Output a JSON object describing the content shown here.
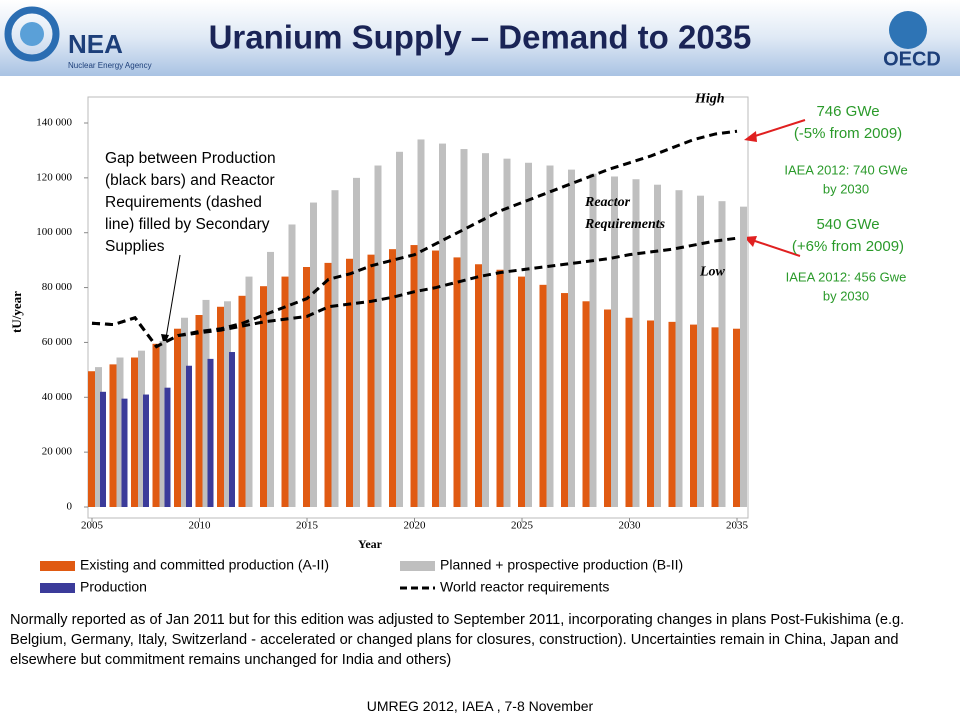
{
  "header": {
    "title": "Uranium Supply – Demand to 2035",
    "left_logo": "NEA",
    "left_logo_sub": "Nuclear Energy Agency",
    "right_logo": "OECD"
  },
  "chart_data": {
    "type": "bar",
    "x": [
      2005,
      2006,
      2007,
      2008,
      2009,
      2010,
      2011,
      2012,
      2013,
      2014,
      2015,
      2016,
      2017,
      2018,
      2019,
      2020,
      2021,
      2022,
      2023,
      2024,
      2025,
      2026,
      2027,
      2028,
      2029,
      2030,
      2031,
      2032,
      2033,
      2034,
      2035
    ],
    "xlim": [
      2005,
      2035
    ],
    "xticks": [
      2005,
      2010,
      2015,
      2020,
      2025,
      2030,
      2035
    ],
    "ylim": [
      0,
      140000
    ],
    "yticks": [
      0,
      {
        "value": 20000,
        "label": "20 000"
      },
      {
        "value": 40000,
        "label": "40 000"
      },
      {
        "value": 60000,
        "label": "60 000"
      },
      {
        "value": 80000,
        "label": "80 000"
      },
      {
        "value": 100000,
        "label": "100 000"
      },
      {
        "value": 120000,
        "label": "120 000"
      },
      {
        "value": 140000,
        "label": "140 000"
      }
    ],
    "xlabel": "Year",
    "ylabel": "tU/year",
    "series": [
      {
        "name": "Existing and committed production (A-II)",
        "color": "#e05a12",
        "values": [
          49500,
          52000,
          54500,
          59500,
          65000,
          70000,
          73000,
          77000,
          80500,
          84000,
          87500,
          89000,
          90500,
          92000,
          94000,
          95500,
          93500,
          91000,
          88500,
          86500,
          84000,
          81000,
          78000,
          75000,
          72000,
          69000,
          68000,
          67500,
          66500,
          65500,
          65000
        ]
      },
      {
        "name": "Planned + prospective production (B-II)",
        "color": "#bfbfbf",
        "values": [
          51000,
          54500,
          57000,
          60500,
          69000,
          75500,
          75000,
          84000,
          93000,
          103000,
          111000,
          115500,
          120000,
          124500,
          129500,
          134000,
          132500,
          130500,
          129000,
          127000,
          125500,
          124500,
          123000,
          121500,
          120500,
          119500,
          117500,
          115500,
          113500,
          111500,
          109500
        ]
      },
      {
        "name": "Production",
        "color": "#3b3b9a",
        "values": [
          42000,
          39500,
          41000,
          43500,
          51500,
          54000,
          56500,
          null,
          null,
          null,
          null,
          null,
          null,
          null,
          null,
          null,
          null,
          null,
          null,
          null,
          null,
          null,
          null,
          null,
          null,
          null,
          null,
          null,
          null,
          null,
          null
        ]
      },
      {
        "name": "World reactor requirements",
        "color": "#000000",
        "dashed": true,
        "scenarios": [
          {
            "label": "High",
            "values": [
              67000,
              66500,
              69000,
              58500,
              62500,
              64000,
              65000,
              67000,
              70000,
              73000,
              76000,
              83000,
              85000,
              88000,
              90000,
              92000,
              96000,
              100000,
              104000,
              108000,
              111000,
              114000,
              117000,
              120000,
              123000,
              125500,
              128000,
              131000,
              134000,
              136000,
              137000
            ]
          },
          {
            "label": "Low",
            "values": [
              67000,
              66500,
              69000,
              58500,
              62500,
              63500,
              64500,
              66000,
              67500,
              68500,
              69500,
              73000,
              74000,
              75000,
              76500,
              78500,
              80000,
              82000,
              84000,
              85500,
              86500,
              87500,
              88500,
              89500,
              90500,
              92000,
              93000,
              94000,
              95500,
              97000,
              98000
            ]
          }
        ]
      }
    ],
    "annotations": {
      "reactor": [
        "Reactor",
        "Requirements"
      ],
      "gap": [
        "Gap between Production",
        "(black bars) and Reactor",
        "Requirements (dashed",
        "line) filled by Secondary",
        "Supplies"
      ],
      "high_gwe": [
        "746 GWe",
        "(-5% from 2009)"
      ],
      "high_iaea": [
        "IAEA 2012: 740 GWe",
        "by 2030"
      ],
      "low_gwe": [
        "540 GWe",
        "(+6% from 2009)"
      ],
      "low_iaea": [
        "IAEA 2012: 456 Gwe",
        "by 2030"
      ]
    }
  },
  "note": "Normally reported as of Jan 2011 but for this edition was adjusted to September 2011, incorporating changes in plans Post-Fukishima (e.g. Belgium, Germany, Italy, Switzerland - accelerated or changed plans for closures, construction). Uncertainties remain in China, Japan and elsewhere but commitment remains unchanged for India and others)",
  "footer": "UMREG 2012, IAEA , 7-8 November"
}
